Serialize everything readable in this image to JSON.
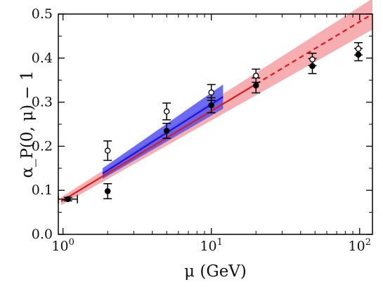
{
  "chart_data": {
    "type": "scatter",
    "title": "",
    "xlabel": "μ (GeV)",
    "ylabel": "α_P(0, μ) − 1",
    "xscale": "log",
    "xlim": [
      0.93,
      122
    ],
    "ylim": [
      0.0,
      0.5
    ],
    "grid": false,
    "legend": "none",
    "x_ticks": [
      {
        "value": 1,
        "base": "10",
        "exp": "0"
      },
      {
        "value": 10,
        "base": "10",
        "exp": "1"
      },
      {
        "value": 100,
        "base": "10",
        "exp": "2"
      }
    ],
    "y_ticks": [
      {
        "value": 0.0,
        "label": "0.0"
      },
      {
        "value": 0.1,
        "label": "0.1"
      },
      {
        "value": 0.2,
        "label": "0.2"
      },
      {
        "value": 0.3,
        "label": "0.3"
      },
      {
        "value": 0.4,
        "label": "0.4"
      },
      {
        "value": 0.5,
        "label": "0.5"
      }
    ],
    "series": [
      {
        "marker": "filled-circle",
        "color": "#000000",
        "points": [
          {
            "x": 1.08,
            "y": 0.08,
            "yerr": 0.004,
            "xlo": 0.93,
            "xhi": 1.25
          },
          {
            "x": 2.0,
            "y": 0.098,
            "yerr": 0.017
          },
          {
            "x": 5.0,
            "y": 0.235,
            "yerr": 0.017
          },
          {
            "x": 10.0,
            "y": 0.293,
            "yerr": 0.017
          },
          {
            "x": 20.0,
            "y": 0.338,
            "yerr": 0.017
          },
          {
            "x": 48.0,
            "y": 0.382,
            "yerr": 0.017
          },
          {
            "x": 98.0,
            "y": 0.408,
            "yerr": 0.014
          }
        ]
      },
      {
        "marker": "open-circle",
        "color": "#000000",
        "points": [
          {
            "x": 2.0,
            "y": 0.19,
            "yerr": 0.022
          },
          {
            "x": 5.0,
            "y": 0.279,
            "yerr": 0.019
          },
          {
            "x": 10.0,
            "y": 0.322,
            "yerr": 0.018
          },
          {
            "x": 20.0,
            "y": 0.36,
            "yerr": 0.015
          },
          {
            "x": 48.0,
            "y": 0.397,
            "yerr": 0.014
          },
          {
            "x": 98.0,
            "y": 0.421,
            "yerr": 0.014
          }
        ]
      }
    ],
    "fits": [
      {
        "color": "#e0181a",
        "band_color": "#f5a0a3",
        "x_solid": [
          0.97,
          20.0
        ],
        "x_dashed": [
          20.0,
          122
        ],
        "line_start": [
          0.97,
          0.075
        ],
        "line_end": [
          122,
          0.5
        ],
        "band_start": [
          0.97,
          0.066,
          0.084
        ],
        "band_end": [
          122,
          0.465,
          0.535
        ]
      },
      {
        "color": "#1515e0",
        "band_color": "#5252f0",
        "line_start": [
          1.85,
          0.138
        ],
        "line_end": [
          12.0,
          0.312
        ],
        "band_start": [
          1.85,
          0.126,
          0.15
        ],
        "band_end": [
          12.0,
          0.285,
          0.34
        ]
      }
    ]
  }
}
